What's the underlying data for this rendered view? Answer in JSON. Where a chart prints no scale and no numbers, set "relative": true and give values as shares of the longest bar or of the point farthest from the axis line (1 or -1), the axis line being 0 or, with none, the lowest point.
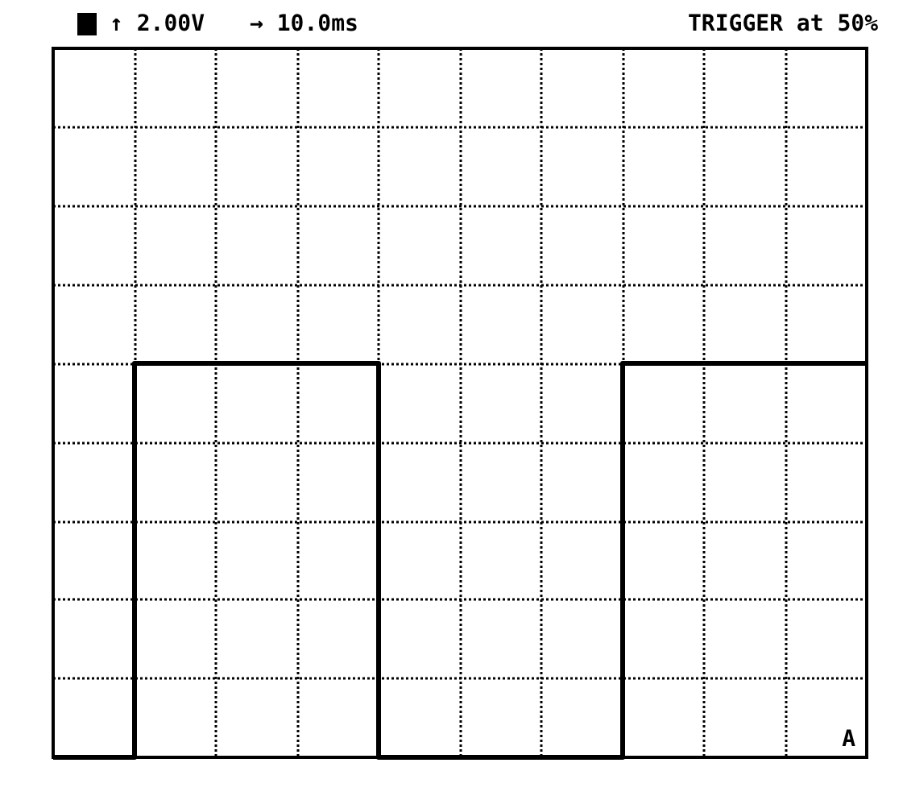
{
  "chart_data": {
    "type": "step",
    "relative": true,
    "categories": [
      null,
      null,
      null,
      null,
      null,
      null,
      null,
      null,
      null,
      null,
      null
    ],
    "series": [
      {
        "color": "#000000",
        "values": [
          0,
          1,
          1,
          1,
          0,
          0,
          0,
          1,
          1,
          1,
          1
        ]
      }
    ],
    "annotations": [
      "↑ 2.00V",
      "→ 10.0ms",
      "TRIGGER at 50%",
      "A"
    ],
    "grid": true,
    "marker": "none",
    "line_style": "solid"
  }
}
